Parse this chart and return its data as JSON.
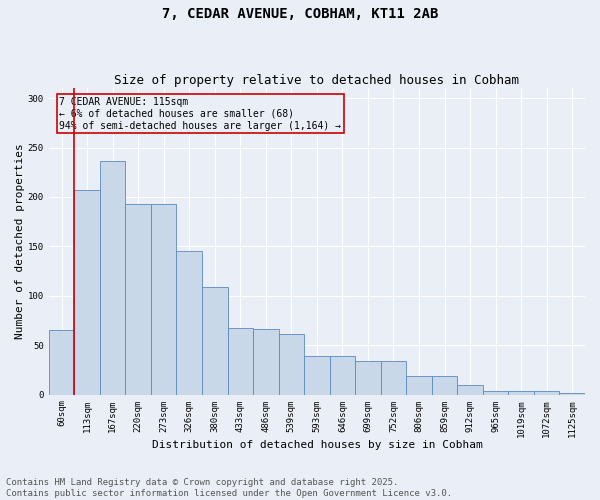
{
  "title_line1": "7, CEDAR AVENUE, COBHAM, KT11 2AB",
  "title_line2": "Size of property relative to detached houses in Cobham",
  "xlabel": "Distribution of detached houses by size in Cobham",
  "ylabel": "Number of detached properties",
  "categories": [
    "60sqm",
    "113sqm",
    "167sqm",
    "220sqm",
    "273sqm",
    "326sqm",
    "380sqm",
    "433sqm",
    "486sqm",
    "539sqm",
    "593sqm",
    "646sqm",
    "699sqm",
    "752sqm",
    "806sqm",
    "859sqm",
    "912sqm",
    "965sqm",
    "1019sqm",
    "1072sqm",
    "1125sqm"
  ],
  "values": [
    65,
    207,
    236,
    193,
    193,
    145,
    109,
    67,
    66,
    61,
    39,
    39,
    34,
    34,
    19,
    19,
    10,
    4,
    4,
    4,
    2
  ],
  "bar_color": "#c8d8e8",
  "bar_edge_color": "#5a8abf",
  "vline_color": "#cc0000",
  "annotation_title": "7 CEDAR AVENUE: 115sqm",
  "annotation_line1": "← 6% of detached houses are smaller (68)",
  "annotation_line2": "94% of semi-detached houses are larger (1,164) →",
  "annotation_box_color": "#cc0000",
  "ylim": [
    0,
    310
  ],
  "yticks": [
    0,
    50,
    100,
    150,
    200,
    250,
    300
  ],
  "background_color": "#eaeff7",
  "grid_color": "#ffffff",
  "footer_line1": "Contains HM Land Registry data © Crown copyright and database right 2025.",
  "footer_line2": "Contains public sector information licensed under the Open Government Licence v3.0.",
  "title_fontsize": 10,
  "subtitle_fontsize": 9,
  "axis_label_fontsize": 8,
  "tick_fontsize": 6.5,
  "annotation_fontsize": 7,
  "footer_fontsize": 6.5
}
